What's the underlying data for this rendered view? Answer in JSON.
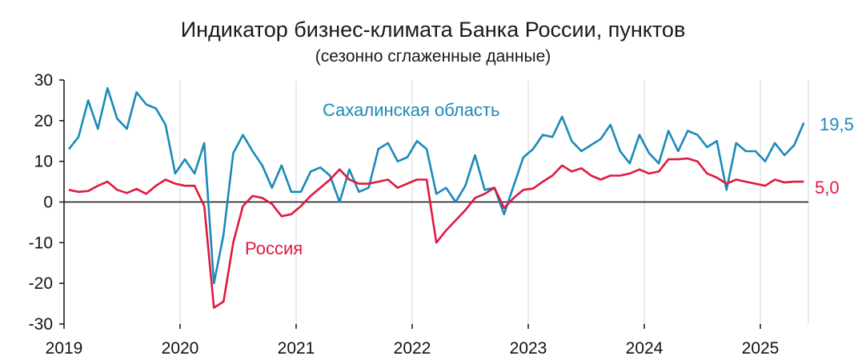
{
  "chart_data": {
    "type": "line",
    "title": "Индикатор бизнес-климата Банка России, пунктов",
    "subtitle": "(сезонно сглаженные данные)",
    "xlabel": "",
    "ylabel": "",
    "ylim": [
      -30,
      30
    ],
    "yticks": [
      30,
      20,
      10,
      0,
      -10,
      -20,
      -30
    ],
    "ytick_labels": [
      "30",
      "20",
      "10",
      "0",
      "-10",
      "-20",
      "-30"
    ],
    "xticks": [
      "2019",
      "2020",
      "2021",
      "2022",
      "2023",
      "2024",
      "2025"
    ],
    "start": "2019-01",
    "grid": "vertical at year boundaries",
    "series": [
      {
        "name": "Сахалинская область",
        "color": "#1a8ab8",
        "end_label": "19,5",
        "values": [
          13,
          16,
          25,
          18,
          28,
          20.5,
          18,
          27,
          24,
          23,
          19,
          7,
          10.5,
          7,
          14.5,
          -20,
          -8,
          12,
          16.5,
          12.5,
          9,
          3.5,
          9,
          2.5,
          2.5,
          7.5,
          8.5,
          6.5,
          0,
          8,
          2.5,
          3.5,
          13,
          14.5,
          10,
          11,
          15,
          13,
          2,
          3.5,
          0,
          4,
          11.5,
          3,
          3.5,
          -3,
          4,
          11,
          13,
          16.5,
          16,
          21,
          15,
          12.5,
          14,
          15.5,
          19,
          12.5,
          9.5,
          16.5,
          12,
          9.5,
          17.5,
          12.5,
          17.5,
          16.5,
          13.5,
          15,
          3,
          14.5,
          12.5,
          12.5,
          10,
          14.5,
          11.5,
          14,
          19.5
        ]
      },
      {
        "name": "Россия",
        "color": "#e0183f",
        "end_label": "5,0",
        "values": [
          3,
          2.5,
          2.7,
          4,
          5,
          3,
          2.2,
          3.2,
          2,
          4,
          5.5,
          4.5,
          4,
          4,
          -1,
          -26,
          -24.5,
          -10,
          -1,
          1.5,
          1,
          -0.5,
          -3.5,
          -3,
          -1,
          1.5,
          3.5,
          5.5,
          8,
          5.5,
          4.5,
          4.5,
          5,
          5.5,
          3.5,
          4.5,
          5.5,
          5.5,
          -10,
          -7,
          -4.5,
          -2,
          1,
          2,
          3.5,
          -1.5,
          1,
          3,
          3.3,
          5,
          6.5,
          9,
          7.5,
          8.3,
          6.5,
          5.5,
          6.5,
          6.5,
          7,
          8,
          7,
          7.5,
          10.5,
          10.5,
          10.7,
          10,
          7,
          6,
          4.5,
          5.5,
          5,
          4.5,
          4,
          5.5,
          4.8,
          5,
          5
        ]
      }
    ]
  }
}
